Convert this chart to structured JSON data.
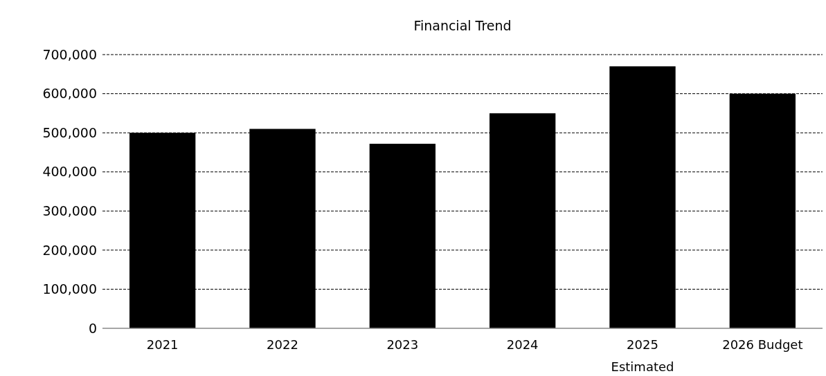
{
  "chart_data": {
    "type": "bar",
    "title": "Financial Trend",
    "categories": [
      "2021",
      "2022",
      "2023",
      "2024",
      "2025\nEstimated",
      "2026 Budget"
    ],
    "values": [
      500000,
      510000,
      472000,
      550000,
      670000,
      600000
    ],
    "color": "#000000",
    "ylim": [
      0,
      700000
    ],
    "yticks": [
      {
        "value": 0,
        "label": "0"
      },
      {
        "value": 100000,
        "label": "100,000"
      },
      {
        "value": 200000,
        "label": "200,000"
      },
      {
        "value": 300000,
        "label": "300,000"
      },
      {
        "value": 400000,
        "label": "400,000"
      },
      {
        "value": 500000,
        "label": "500,000"
      },
      {
        "value": 600000,
        "label": "600,000"
      },
      {
        "value": 700000,
        "label": "700,000"
      }
    ],
    "grid": "y"
  }
}
